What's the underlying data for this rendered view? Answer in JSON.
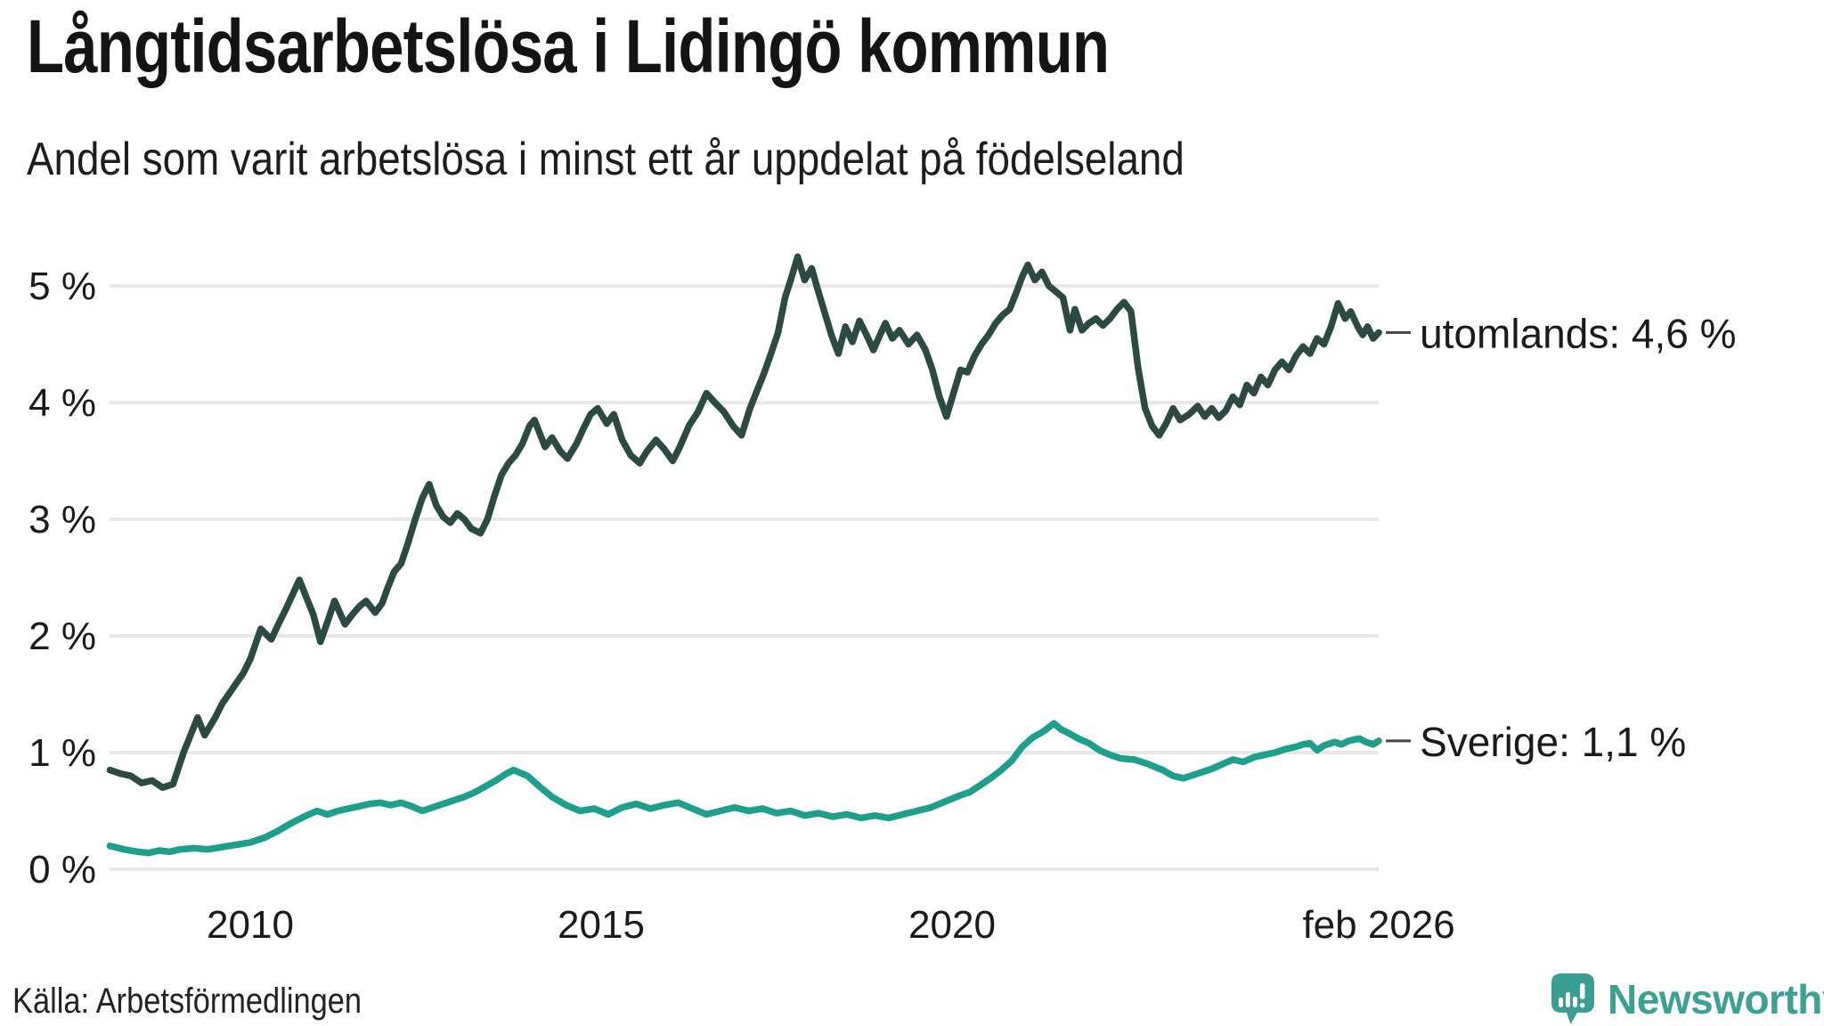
{
  "header": {
    "title": "Långtidsarbetslösa i Lidingö kommun",
    "subtitle": "Andel som varit arbetslösa i minst ett år uppdelat på födelseland"
  },
  "footer": {
    "source": "Källa: Arbetsförmedlingen",
    "logo_text": "Newsworthy"
  },
  "colors": {
    "title_text": "#141414",
    "axis_text": "#1a1a1a",
    "gridline": "#e7e7ea",
    "connector": "#444444",
    "series_utomlands": "#2c4a41",
    "series_sverige": "#1d9f8c",
    "brand_teal": "#3ba195"
  },
  "chart_data": {
    "type": "line",
    "title": "Långtidsarbetslösa i Lidingö kommun",
    "subtitle": "Andel som varit arbetslösa i minst ett år uppdelat på födelseland",
    "unit": "%",
    "grid": true,
    "legend_position": "right-end-labels",
    "x_range": [
      2008.0,
      2026.08
    ],
    "y_range": [
      0,
      5.4
    ],
    "y_ticks": [
      {
        "label": "0 %",
        "value": 0
      },
      {
        "label": "1 %",
        "value": 1
      },
      {
        "label": "2 %",
        "value": 2
      },
      {
        "label": "3 %",
        "value": 3
      },
      {
        "label": "4 %",
        "value": 4
      },
      {
        "label": "5 %",
        "value": 5
      }
    ],
    "x_ticks": [
      {
        "label": "2010",
        "year": 2010
      },
      {
        "label": "2015",
        "year": 2015
      },
      {
        "label": "2020",
        "year": 2020
      },
      {
        "label": "feb 2026",
        "year": 2026.08
      }
    ],
    "series": [
      {
        "name": "utomlands",
        "end_label": "utomlands: 4,6 %",
        "end_value": "4,6 %",
        "color": "#2c4a41",
        "points": [
          [
            2008.0,
            0.85
          ],
          [
            2008.15,
            0.82
          ],
          [
            2008.3,
            0.8
          ],
          [
            2008.45,
            0.74
          ],
          [
            2008.6,
            0.76
          ],
          [
            2008.75,
            0.7
          ],
          [
            2008.9,
            0.73
          ],
          [
            2009.05,
            1.0
          ],
          [
            2009.15,
            1.15
          ],
          [
            2009.25,
            1.3
          ],
          [
            2009.35,
            1.15
          ],
          [
            2009.5,
            1.3
          ],
          [
            2009.6,
            1.42
          ],
          [
            2009.75,
            1.55
          ],
          [
            2009.9,
            1.68
          ],
          [
            2010.0,
            1.8
          ],
          [
            2010.15,
            2.06
          ],
          [
            2010.3,
            1.97
          ],
          [
            2010.4,
            2.1
          ],
          [
            2010.5,
            2.22
          ],
          [
            2010.6,
            2.35
          ],
          [
            2010.7,
            2.48
          ],
          [
            2010.8,
            2.33
          ],
          [
            2010.9,
            2.18
          ],
          [
            2011.0,
            1.95
          ],
          [
            2011.1,
            2.12
          ],
          [
            2011.2,
            2.3
          ],
          [
            2011.35,
            2.1
          ],
          [
            2011.45,
            2.18
          ],
          [
            2011.55,
            2.25
          ],
          [
            2011.65,
            2.3
          ],
          [
            2011.78,
            2.2
          ],
          [
            2011.88,
            2.28
          ],
          [
            2011.95,
            2.4
          ],
          [
            2012.05,
            2.55
          ],
          [
            2012.15,
            2.62
          ],
          [
            2012.25,
            2.8
          ],
          [
            2012.35,
            3.0
          ],
          [
            2012.45,
            3.18
          ],
          [
            2012.55,
            3.3
          ],
          [
            2012.65,
            3.12
          ],
          [
            2012.75,
            3.02
          ],
          [
            2012.85,
            2.97
          ],
          [
            2012.95,
            3.05
          ],
          [
            2013.05,
            3.0
          ],
          [
            2013.15,
            2.92
          ],
          [
            2013.28,
            2.88
          ],
          [
            2013.38,
            3.0
          ],
          [
            2013.48,
            3.2
          ],
          [
            2013.58,
            3.38
          ],
          [
            2013.68,
            3.48
          ],
          [
            2013.78,
            3.55
          ],
          [
            2013.88,
            3.65
          ],
          [
            2013.98,
            3.8
          ],
          [
            2014.05,
            3.85
          ],
          [
            2014.2,
            3.62
          ],
          [
            2014.3,
            3.7
          ],
          [
            2014.42,
            3.58
          ],
          [
            2014.52,
            3.52
          ],
          [
            2014.65,
            3.65
          ],
          [
            2014.75,
            3.78
          ],
          [
            2014.85,
            3.9
          ],
          [
            2014.95,
            3.95
          ],
          [
            2015.08,
            3.82
          ],
          [
            2015.18,
            3.9
          ],
          [
            2015.3,
            3.68
          ],
          [
            2015.42,
            3.55
          ],
          [
            2015.55,
            3.48
          ],
          [
            2015.65,
            3.58
          ],
          [
            2015.78,
            3.68
          ],
          [
            2015.9,
            3.6
          ],
          [
            2016.02,
            3.5
          ],
          [
            2016.12,
            3.62
          ],
          [
            2016.25,
            3.8
          ],
          [
            2016.38,
            3.92
          ],
          [
            2016.5,
            4.08
          ],
          [
            2016.62,
            4.0
          ],
          [
            2016.75,
            3.92
          ],
          [
            2016.88,
            3.8
          ],
          [
            2017.0,
            3.72
          ],
          [
            2017.12,
            3.95
          ],
          [
            2017.22,
            4.1
          ],
          [
            2017.32,
            4.25
          ],
          [
            2017.42,
            4.42
          ],
          [
            2017.52,
            4.6
          ],
          [
            2017.62,
            4.9
          ],
          [
            2017.7,
            5.05
          ],
          [
            2017.8,
            5.25
          ],
          [
            2017.9,
            5.05
          ],
          [
            2018.0,
            5.15
          ],
          [
            2018.08,
            4.98
          ],
          [
            2018.18,
            4.78
          ],
          [
            2018.28,
            4.58
          ],
          [
            2018.38,
            4.42
          ],
          [
            2018.48,
            4.65
          ],
          [
            2018.58,
            4.52
          ],
          [
            2018.68,
            4.7
          ],
          [
            2018.78,
            4.58
          ],
          [
            2018.88,
            4.45
          ],
          [
            2018.95,
            4.55
          ],
          [
            2019.05,
            4.68
          ],
          [
            2019.15,
            4.55
          ],
          [
            2019.25,
            4.62
          ],
          [
            2019.38,
            4.5
          ],
          [
            2019.5,
            4.58
          ],
          [
            2019.62,
            4.45
          ],
          [
            2019.72,
            4.28
          ],
          [
            2019.82,
            4.05
          ],
          [
            2019.92,
            3.88
          ],
          [
            2020.02,
            4.08
          ],
          [
            2020.12,
            4.28
          ],
          [
            2020.22,
            4.26
          ],
          [
            2020.32,
            4.4
          ],
          [
            2020.42,
            4.5
          ],
          [
            2020.52,
            4.58
          ],
          [
            2020.62,
            4.68
          ],
          [
            2020.72,
            4.75
          ],
          [
            2020.82,
            4.8
          ],
          [
            2020.92,
            4.95
          ],
          [
            2021.0,
            5.08
          ],
          [
            2021.08,
            5.18
          ],
          [
            2021.18,
            5.05
          ],
          [
            2021.28,
            5.12
          ],
          [
            2021.38,
            5.0
          ],
          [
            2021.48,
            4.95
          ],
          [
            2021.58,
            4.9
          ],
          [
            2021.68,
            4.62
          ],
          [
            2021.75,
            4.8
          ],
          [
            2021.85,
            4.62
          ],
          [
            2021.95,
            4.68
          ],
          [
            2022.05,
            4.72
          ],
          [
            2022.15,
            4.66
          ],
          [
            2022.25,
            4.72
          ],
          [
            2022.35,
            4.8
          ],
          [
            2022.45,
            4.86
          ],
          [
            2022.55,
            4.78
          ],
          [
            2022.65,
            4.3
          ],
          [
            2022.75,
            3.95
          ],
          [
            2022.85,
            3.8
          ],
          [
            2022.95,
            3.72
          ],
          [
            2023.05,
            3.82
          ],
          [
            2023.15,
            3.95
          ],
          [
            2023.25,
            3.85
          ],
          [
            2023.38,
            3.9
          ],
          [
            2023.5,
            3.97
          ],
          [
            2023.6,
            3.88
          ],
          [
            2023.7,
            3.95
          ],
          [
            2023.8,
            3.87
          ],
          [
            2023.9,
            3.93
          ],
          [
            2024.0,
            4.05
          ],
          [
            2024.1,
            3.98
          ],
          [
            2024.2,
            4.15
          ],
          [
            2024.3,
            4.08
          ],
          [
            2024.4,
            4.22
          ],
          [
            2024.5,
            4.15
          ],
          [
            2024.6,
            4.28
          ],
          [
            2024.7,
            4.35
          ],
          [
            2024.8,
            4.28
          ],
          [
            2024.9,
            4.4
          ],
          [
            2025.0,
            4.48
          ],
          [
            2025.1,
            4.42
          ],
          [
            2025.2,
            4.55
          ],
          [
            2025.3,
            4.5
          ],
          [
            2025.4,
            4.65
          ],
          [
            2025.5,
            4.85
          ],
          [
            2025.6,
            4.72
          ],
          [
            2025.68,
            4.78
          ],
          [
            2025.78,
            4.65
          ],
          [
            2025.85,
            4.58
          ],
          [
            2025.92,
            4.65
          ],
          [
            2026.0,
            4.55
          ],
          [
            2026.08,
            4.6
          ]
        ]
      },
      {
        "name": "Sverige",
        "end_label": "Sverige: 1,1 %",
        "end_value": "1,1 %",
        "color": "#1d9f8c",
        "points": [
          [
            2008.0,
            0.2
          ],
          [
            2008.2,
            0.17
          ],
          [
            2008.4,
            0.15
          ],
          [
            2008.55,
            0.14
          ],
          [
            2008.7,
            0.16
          ],
          [
            2008.85,
            0.15
          ],
          [
            2009.0,
            0.17
          ],
          [
            2009.2,
            0.18
          ],
          [
            2009.4,
            0.17
          ],
          [
            2009.6,
            0.19
          ],
          [
            2009.8,
            0.21
          ],
          [
            2010.0,
            0.23
          ],
          [
            2010.2,
            0.27
          ],
          [
            2010.4,
            0.33
          ],
          [
            2010.6,
            0.4
          ],
          [
            2010.8,
            0.46
          ],
          [
            2010.95,
            0.5
          ],
          [
            2011.1,
            0.47
          ],
          [
            2011.25,
            0.5
          ],
          [
            2011.4,
            0.52
          ],
          [
            2011.55,
            0.54
          ],
          [
            2011.7,
            0.56
          ],
          [
            2011.85,
            0.57
          ],
          [
            2012.0,
            0.55
          ],
          [
            2012.15,
            0.57
          ],
          [
            2012.3,
            0.54
          ],
          [
            2012.45,
            0.5
          ],
          [
            2012.6,
            0.53
          ],
          [
            2012.75,
            0.56
          ],
          [
            2012.9,
            0.59
          ],
          [
            2013.05,
            0.62
          ],
          [
            2013.2,
            0.66
          ],
          [
            2013.35,
            0.71
          ],
          [
            2013.5,
            0.76
          ],
          [
            2013.65,
            0.82
          ],
          [
            2013.75,
            0.85
          ],
          [
            2013.95,
            0.8
          ],
          [
            2014.1,
            0.72
          ],
          [
            2014.3,
            0.62
          ],
          [
            2014.5,
            0.55
          ],
          [
            2014.7,
            0.5
          ],
          [
            2014.9,
            0.52
          ],
          [
            2015.1,
            0.47
          ],
          [
            2015.3,
            0.53
          ],
          [
            2015.5,
            0.56
          ],
          [
            2015.7,
            0.52
          ],
          [
            2015.9,
            0.55
          ],
          [
            2016.1,
            0.57
          ],
          [
            2016.3,
            0.52
          ],
          [
            2016.5,
            0.47
          ],
          [
            2016.7,
            0.5
          ],
          [
            2016.9,
            0.53
          ],
          [
            2017.1,
            0.5
          ],
          [
            2017.3,
            0.52
          ],
          [
            2017.5,
            0.48
          ],
          [
            2017.7,
            0.5
          ],
          [
            2017.9,
            0.46
          ],
          [
            2018.1,
            0.48
          ],
          [
            2018.3,
            0.45
          ],
          [
            2018.5,
            0.47
          ],
          [
            2018.7,
            0.44
          ],
          [
            2018.9,
            0.46
          ],
          [
            2019.1,
            0.44
          ],
          [
            2019.3,
            0.47
          ],
          [
            2019.5,
            0.5
          ],
          [
            2019.7,
            0.53
          ],
          [
            2019.9,
            0.58
          ],
          [
            2020.1,
            0.63
          ],
          [
            2020.25,
            0.66
          ],
          [
            2020.4,
            0.72
          ],
          [
            2020.55,
            0.78
          ],
          [
            2020.7,
            0.85
          ],
          [
            2020.85,
            0.93
          ],
          [
            2021.0,
            1.05
          ],
          [
            2021.15,
            1.13
          ],
          [
            2021.3,
            1.18
          ],
          [
            2021.45,
            1.25
          ],
          [
            2021.55,
            1.2
          ],
          [
            2021.65,
            1.17
          ],
          [
            2021.8,
            1.12
          ],
          [
            2021.95,
            1.08
          ],
          [
            2022.1,
            1.02
          ],
          [
            2022.25,
            0.98
          ],
          [
            2022.4,
            0.95
          ],
          [
            2022.6,
            0.94
          ],
          [
            2022.8,
            0.9
          ],
          [
            2023.0,
            0.85
          ],
          [
            2023.15,
            0.8
          ],
          [
            2023.3,
            0.78
          ],
          [
            2023.5,
            0.82
          ],
          [
            2023.7,
            0.86
          ],
          [
            2023.85,
            0.9
          ],
          [
            2024.0,
            0.94
          ],
          [
            2024.15,
            0.92
          ],
          [
            2024.3,
            0.96
          ],
          [
            2024.45,
            0.98
          ],
          [
            2024.6,
            1.0
          ],
          [
            2024.75,
            1.03
          ],
          [
            2024.9,
            1.05
          ],
          [
            2025.0,
            1.07
          ],
          [
            2025.1,
            1.08
          ],
          [
            2025.2,
            1.02
          ],
          [
            2025.3,
            1.06
          ],
          [
            2025.45,
            1.09
          ],
          [
            2025.55,
            1.07
          ],
          [
            2025.65,
            1.1
          ],
          [
            2025.8,
            1.12
          ],
          [
            2025.9,
            1.09
          ],
          [
            2026.0,
            1.07
          ],
          [
            2026.08,
            1.1
          ]
        ]
      }
    ]
  }
}
